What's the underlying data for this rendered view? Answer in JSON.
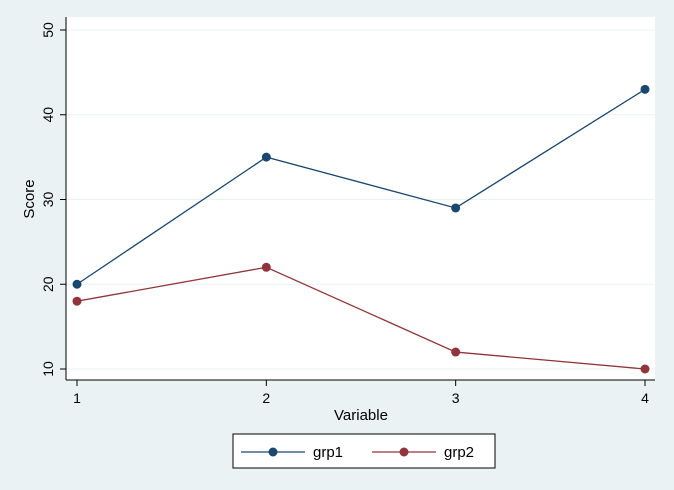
{
  "chart_data": {
    "type": "line",
    "title": "",
    "xlabel": "Variable",
    "ylabel": "Score",
    "x": [
      1,
      2,
      3,
      4
    ],
    "xticks": [
      "1",
      "2",
      "3",
      "4"
    ],
    "yticks": [
      "10",
      "20",
      "30",
      "40",
      "50"
    ],
    "xlim": [
      1,
      4
    ],
    "ylim": [
      10,
      50
    ],
    "grid": true,
    "legend_position": "bottom",
    "series": [
      {
        "name": "grp1",
        "values": [
          20,
          35,
          29,
          43
        ],
        "color": "#1a476f"
      },
      {
        "name": "grp2",
        "values": [
          18,
          22,
          12,
          10
        ],
        "color": "#90353b"
      }
    ],
    "colors": {
      "background": "#eaf2f3",
      "plot_area": "#ffffff",
      "grid": "#eaf2f3"
    }
  }
}
